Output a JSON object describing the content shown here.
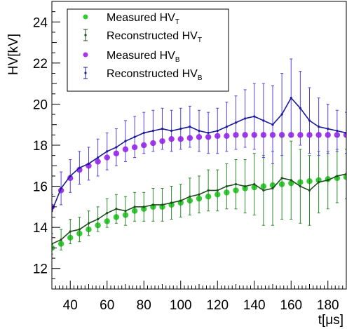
{
  "chart_data": {
    "type": "scatter",
    "title": "",
    "xlabel": "t[μs]",
    "ylabel": "HV[kV]",
    "xlim": [
      30,
      190
    ],
    "ylim": [
      11,
      25
    ],
    "xticks": [
      "40",
      "60",
      "80",
      "100",
      "120",
      "140",
      "160",
      "180"
    ],
    "yticks": [
      "12",
      "14",
      "16",
      "18",
      "20",
      "22",
      "24"
    ],
    "grid": false,
    "legend_position": "top-left",
    "legend": [
      {
        "main": "Measured HV",
        "sub": "T",
        "marker": "dot",
        "color": "#33cc33"
      },
      {
        "main": "Reconstructed HV",
        "sub": "T",
        "marker": "errorbar",
        "color": "#1a4d1a"
      },
      {
        "main": "Measured HV",
        "sub": "B",
        "marker": "dot",
        "color": "#aa33ee"
      },
      {
        "main": "Reconstructed HV",
        "sub": "B",
        "marker": "errorbar",
        "color": "#1a1a99"
      }
    ],
    "colors": {
      "measured_T": "#33cc33",
      "reconstructed_T": "#1a4d1a",
      "reconstructed_T_bars": "#2e8b2e",
      "measured_B": "#aa33ee",
      "reconstructed_B": "#1a1a99",
      "reconstructed_B_bars": "#5544dd"
    },
    "series": [
      {
        "name": "Measured HV_T",
        "x": [
          30,
          35,
          40,
          45,
          50,
          55,
          60,
          65,
          70,
          75,
          80,
          85,
          90,
          95,
          100,
          105,
          110,
          115,
          120,
          125,
          130,
          135,
          140,
          145,
          150,
          155,
          160,
          165,
          170,
          175,
          180,
          185,
          190
        ],
        "y": [
          13.0,
          13.2,
          13.5,
          13.7,
          13.9,
          14.1,
          14.3,
          14.5,
          14.6,
          14.8,
          14.9,
          15.0,
          15.0,
          15.1,
          15.2,
          15.3,
          15.4,
          15.5,
          15.6,
          15.7,
          15.8,
          15.9,
          15.95,
          16.0,
          16.05,
          16.1,
          16.15,
          16.2,
          16.25,
          16.3,
          16.35,
          16.4,
          16.45
        ]
      },
      {
        "name": "Reconstructed HV_T",
        "x": [
          30,
          35,
          40,
          45,
          50,
          55,
          60,
          65,
          70,
          75,
          80,
          85,
          90,
          95,
          100,
          105,
          110,
          115,
          120,
          125,
          130,
          135,
          140,
          145,
          150,
          155,
          160,
          165,
          170,
          175,
          180,
          185,
          190
        ],
        "y": [
          13.2,
          13.4,
          13.8,
          13.9,
          14.2,
          14.4,
          14.7,
          14.9,
          14.8,
          15.0,
          15.0,
          15.1,
          15.1,
          15.2,
          15.3,
          15.5,
          15.6,
          15.8,
          15.8,
          16.0,
          16.1,
          16.0,
          16.1,
          15.8,
          15.9,
          16.4,
          16.3,
          16.0,
          15.8,
          16.2,
          16.3,
          16.5,
          16.6
        ],
        "error": [
          0.5,
          0.5,
          0.6,
          0.6,
          0.6,
          0.6,
          0.7,
          0.7,
          0.7,
          0.7,
          0.7,
          0.8,
          0.8,
          0.8,
          0.8,
          0.9,
          0.9,
          1.0,
          1.0,
          1.1,
          1.2,
          1.3,
          1.5,
          1.7,
          1.8,
          2.0,
          1.9,
          1.8,
          1.7,
          1.5,
          1.4,
          1.3,
          1.2
        ]
      },
      {
        "name": "Measured HV_B",
        "x": [
          30,
          35,
          40,
          45,
          50,
          55,
          60,
          65,
          70,
          75,
          80,
          85,
          90,
          95,
          100,
          105,
          110,
          115,
          120,
          125,
          130,
          135,
          140,
          145,
          150,
          155,
          160,
          165,
          170,
          175,
          180,
          185,
          190
        ],
        "y": [
          15.0,
          15.8,
          16.4,
          16.8,
          17.0,
          17.2,
          17.4,
          17.6,
          17.8,
          17.9,
          18.0,
          18.1,
          18.2,
          18.3,
          18.3,
          18.35,
          18.4,
          18.4,
          18.45,
          18.45,
          18.5,
          18.5,
          18.5,
          18.5,
          18.5,
          18.5,
          18.5,
          18.5,
          18.5,
          18.5,
          18.5,
          18.5,
          18.5
        ]
      },
      {
        "name": "Reconstructed HV_B",
        "x": [
          30,
          35,
          40,
          45,
          50,
          55,
          60,
          65,
          70,
          75,
          80,
          85,
          90,
          95,
          100,
          105,
          110,
          115,
          120,
          125,
          130,
          135,
          140,
          145,
          150,
          155,
          160,
          165,
          170,
          175,
          180,
          185,
          190
        ],
        "y": [
          14.8,
          15.9,
          16.5,
          16.9,
          17.1,
          17.4,
          17.7,
          17.9,
          18.2,
          18.4,
          18.6,
          18.7,
          18.8,
          18.7,
          18.8,
          18.9,
          18.7,
          18.6,
          18.7,
          18.9,
          19.1,
          19.3,
          19.4,
          19.2,
          19.0,
          19.5,
          20.3,
          19.8,
          19.2,
          18.9,
          18.8,
          18.7,
          18.6
        ],
        "error": [
          0.8,
          0.8,
          0.8,
          0.8,
          0.8,
          0.9,
          0.9,
          0.9,
          1.0,
          1.0,
          1.0,
          1.0,
          1.0,
          1.0,
          1.0,
          1.0,
          1.0,
          1.0,
          1.1,
          1.2,
          1.3,
          1.4,
          1.6,
          1.8,
          1.9,
          2.0,
          1.9,
          1.8,
          1.6,
          1.4,
          1.2,
          1.0,
          1.0
        ]
      }
    ]
  }
}
